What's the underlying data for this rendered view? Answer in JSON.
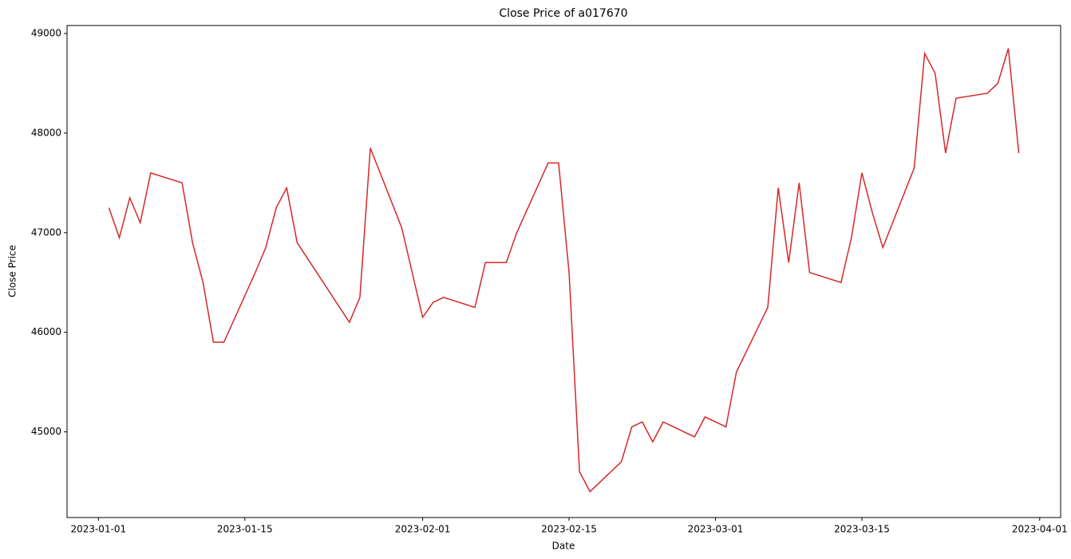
{
  "chart_data": {
    "type": "line",
    "title": "Close Price of a017670",
    "x_label": "Date",
    "y_label": "Close Price",
    "x": [
      "2023-01-02",
      "2023-01-03",
      "2023-01-04",
      "2023-01-05",
      "2023-01-06",
      "2023-01-09",
      "2023-01-10",
      "2023-01-11",
      "2023-01-12",
      "2023-01-13",
      "2023-01-16",
      "2023-01-17",
      "2023-01-18",
      "2023-01-19",
      "2023-01-20",
      "2023-01-25",
      "2023-01-26",
      "2023-01-27",
      "2023-01-30",
      "2023-01-31",
      "2023-02-01",
      "2023-02-02",
      "2023-02-03",
      "2023-02-06",
      "2023-02-07",
      "2023-02-08",
      "2023-02-09",
      "2023-02-10",
      "2023-02-13",
      "2023-02-14",
      "2023-02-15",
      "2023-02-16",
      "2023-02-17",
      "2023-02-20",
      "2023-02-21",
      "2023-02-22",
      "2023-02-23",
      "2023-02-24",
      "2023-02-27",
      "2023-02-28",
      "2023-03-02",
      "2023-03-03",
      "2023-03-06",
      "2023-03-07",
      "2023-03-08",
      "2023-03-09",
      "2023-03-10",
      "2023-03-13",
      "2023-03-14",
      "2023-03-15",
      "2023-03-16",
      "2023-03-17",
      "2023-03-20",
      "2023-03-21",
      "2023-03-22",
      "2023-03-23",
      "2023-03-24",
      "2023-03-27",
      "2023-03-28",
      "2023-03-29",
      "2023-03-30"
    ],
    "series": [
      {
        "name": "Close Price",
        "color": "#d62728",
        "values": [
          47250,
          46950,
          47350,
          47100,
          47600,
          47500,
          46900,
          46500,
          45900,
          45900,
          46600,
          46850,
          47250,
          47450,
          46900,
          46100,
          46350,
          47850,
          47050,
          46600,
          46150,
          46300,
          46350,
          46250,
          46700,
          46700,
          46700,
          47000,
          47700,
          47700,
          46600,
          44600,
          44400,
          44700,
          45050,
          45100,
          44900,
          45100,
          44950,
          45150,
          45050,
          45600,
          46250,
          47450,
          46700,
          47500,
          46600,
          46500,
          46950,
          47600,
          47200,
          46850,
          47650,
          48800,
          48600,
          47800,
          48350,
          48400,
          48500,
          48850,
          47800
        ]
      }
    ],
    "xlim": [
      "2022-12-29",
      "2023-04-03"
    ],
    "xticks": [
      "2023-01-01",
      "2023-01-15",
      "2023-02-01",
      "2023-02-15",
      "2023-03-01",
      "2023-03-15",
      "2023-04-01"
    ],
    "ylim": [
      44140,
      49080
    ],
    "yticks": [
      45000,
      46000,
      47000,
      48000,
      49000
    ],
    "grid": false
  }
}
